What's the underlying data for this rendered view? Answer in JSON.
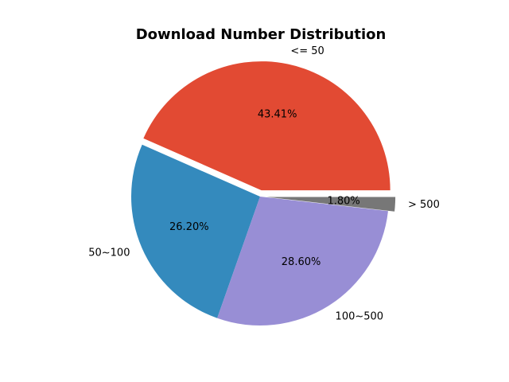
{
  "chart_data": {
    "type": "pie",
    "title": "Download Number Distribution",
    "slices": [
      {
        "label": "<= 50",
        "value": 43.41,
        "pct_label": "43.41%",
        "color": "#E24A33",
        "exploded": true
      },
      {
        "label": "50~100",
        "value": 26.2,
        "pct_label": "26.20%",
        "color": "#348ABD",
        "exploded": false
      },
      {
        "label": "100~500",
        "value": 28.6,
        "pct_label": "28.60%",
        "color": "#988ED5",
        "exploded": false
      },
      {
        "label": "> 500",
        "value": 1.8,
        "pct_label": "1.80%",
        "color": "#777777",
        "exploded": true
      }
    ],
    "start_angle_deg": 0,
    "direction": "counterclockwise"
  }
}
